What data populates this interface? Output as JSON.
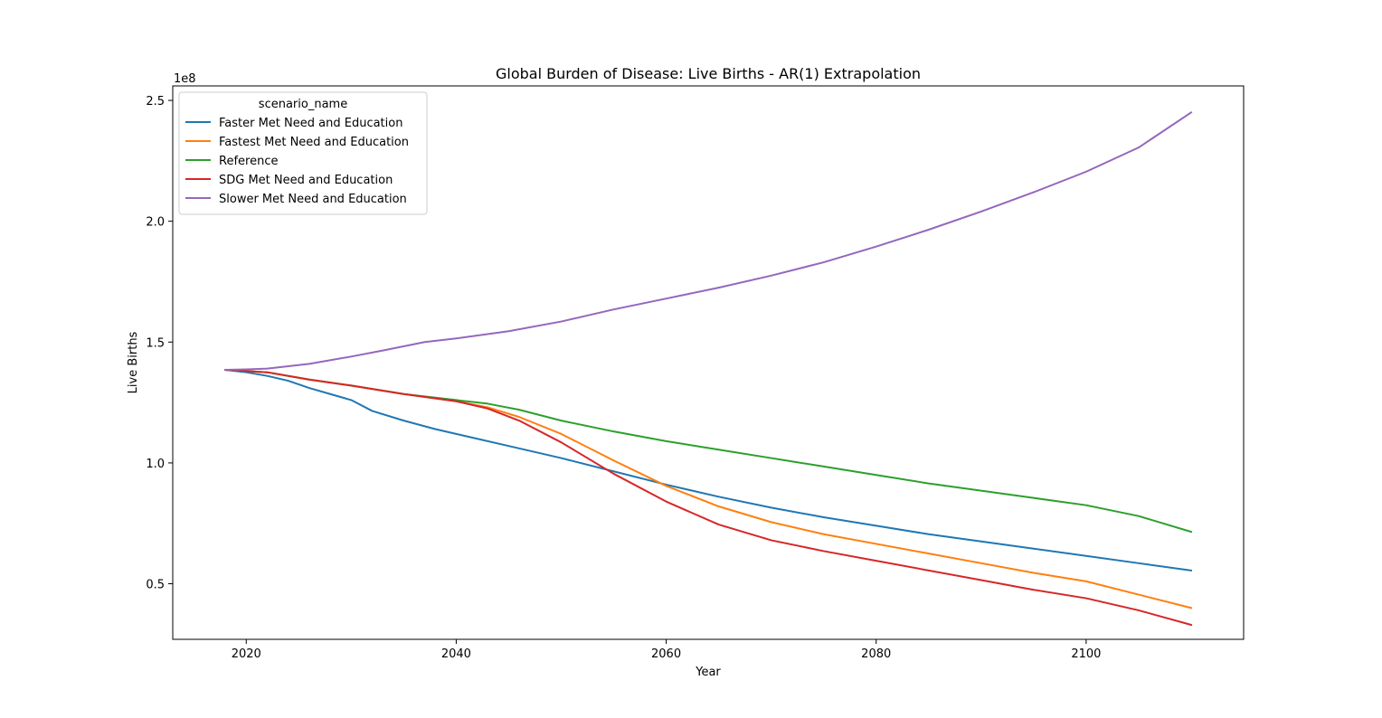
{
  "chart_data": {
    "type": "line",
    "title": "Global Burden of Disease: Live Births - AR(1) Extrapolation",
    "xlabel": "Year",
    "ylabel": "Live Births",
    "y_offset_label": "1e8",
    "xlim": [
      2013,
      2115
    ],
    "ylim": [
      0.27,
      2.56
    ],
    "x_ticks": [
      2020,
      2040,
      2060,
      2080,
      2100
    ],
    "x_tick_labels": [
      "2020",
      "2040",
      "2060",
      "2080",
      "2100"
    ],
    "y_ticks": [
      0.5,
      1.0,
      1.5,
      2.0,
      2.5
    ],
    "y_tick_labels": [
      "0.5",
      "1.0",
      "1.5",
      "2.0",
      "2.5"
    ],
    "grid": false,
    "legend": {
      "title": "scenario_name",
      "placement": "upper-left"
    },
    "series": [
      {
        "name": "Faster Met Need and Education",
        "color": "#1f77b4",
        "points": [
          [
            2018,
            1.385
          ],
          [
            2020,
            1.375
          ],
          [
            2022,
            1.36
          ],
          [
            2024,
            1.34
          ],
          [
            2026,
            1.31
          ],
          [
            2028,
            1.285
          ],
          [
            2030,
            1.26
          ],
          [
            2032,
            1.215
          ],
          [
            2035,
            1.175
          ],
          [
            2038,
            1.14
          ],
          [
            2040,
            1.12
          ],
          [
            2045,
            1.07
          ],
          [
            2050,
            1.02
          ],
          [
            2055,
            0.965
          ],
          [
            2060,
            0.91
          ],
          [
            2065,
            0.86
          ],
          [
            2070,
            0.815
          ],
          [
            2075,
            0.775
          ],
          [
            2080,
            0.74
          ],
          [
            2085,
            0.705
          ],
          [
            2090,
            0.675
          ],
          [
            2095,
            0.645
          ],
          [
            2100,
            0.615
          ],
          [
            2105,
            0.585
          ],
          [
            2110,
            0.555
          ]
        ]
      },
      {
        "name": "Fastest Met Need and Education",
        "color": "#ff7f0e",
        "points": [
          [
            2018,
            1.385
          ],
          [
            2022,
            1.375
          ],
          [
            2026,
            1.345
          ],
          [
            2030,
            1.32
          ],
          [
            2035,
            1.285
          ],
          [
            2040,
            1.255
          ],
          [
            2043,
            1.23
          ],
          [
            2046,
            1.19
          ],
          [
            2050,
            1.12
          ],
          [
            2055,
            1.01
          ],
          [
            2060,
            0.905
          ],
          [
            2065,
            0.82
          ],
          [
            2070,
            0.755
          ],
          [
            2075,
            0.705
          ],
          [
            2080,
            0.665
          ],
          [
            2085,
            0.625
          ],
          [
            2090,
            0.585
          ],
          [
            2095,
            0.545
          ],
          [
            2100,
            0.51
          ],
          [
            2105,
            0.455
          ],
          [
            2110,
            0.4
          ]
        ]
      },
      {
        "name": "Reference",
        "color": "#2ca02c",
        "points": [
          [
            2018,
            1.385
          ],
          [
            2022,
            1.375
          ],
          [
            2026,
            1.345
          ],
          [
            2030,
            1.32
          ],
          [
            2035,
            1.285
          ],
          [
            2040,
            1.26
          ],
          [
            2043,
            1.245
          ],
          [
            2046,
            1.22
          ],
          [
            2050,
            1.175
          ],
          [
            2055,
            1.13
          ],
          [
            2060,
            1.09
          ],
          [
            2065,
            1.055
          ],
          [
            2070,
            1.02
          ],
          [
            2075,
            0.985
          ],
          [
            2080,
            0.95
          ],
          [
            2085,
            0.915
          ],
          [
            2090,
            0.885
          ],
          [
            2095,
            0.855
          ],
          [
            2100,
            0.825
          ],
          [
            2105,
            0.78
          ],
          [
            2110,
            0.715
          ]
        ]
      },
      {
        "name": "SDG Met Need and Education",
        "color": "#d62728",
        "points": [
          [
            2018,
            1.385
          ],
          [
            2022,
            1.375
          ],
          [
            2026,
            1.345
          ],
          [
            2030,
            1.32
          ],
          [
            2035,
            1.285
          ],
          [
            2040,
            1.255
          ],
          [
            2043,
            1.225
          ],
          [
            2046,
            1.175
          ],
          [
            2050,
            1.085
          ],
          [
            2055,
            0.955
          ],
          [
            2060,
            0.84
          ],
          [
            2065,
            0.745
          ],
          [
            2070,
            0.68
          ],
          [
            2075,
            0.635
          ],
          [
            2080,
            0.595
          ],
          [
            2085,
            0.555
          ],
          [
            2090,
            0.515
          ],
          [
            2095,
            0.475
          ],
          [
            2100,
            0.44
          ],
          [
            2105,
            0.39
          ],
          [
            2110,
            0.33
          ]
        ]
      },
      {
        "name": "Slower Met Need and Education",
        "color": "#9467bd",
        "points": [
          [
            2018,
            1.385
          ],
          [
            2020,
            1.387
          ],
          [
            2022,
            1.39
          ],
          [
            2026,
            1.41
          ],
          [
            2030,
            1.44
          ],
          [
            2033,
            1.465
          ],
          [
            2037,
            1.5
          ],
          [
            2040,
            1.515
          ],
          [
            2045,
            1.545
          ],
          [
            2050,
            1.585
          ],
          [
            2055,
            1.635
          ],
          [
            2060,
            1.68
          ],
          [
            2065,
            1.725
          ],
          [
            2070,
            1.775
          ],
          [
            2075,
            1.83
          ],
          [
            2080,
            1.895
          ],
          [
            2085,
            1.965
          ],
          [
            2090,
            2.04
          ],
          [
            2095,
            2.12
          ],
          [
            2100,
            2.205
          ],
          [
            2105,
            2.305
          ],
          [
            2110,
            2.45
          ]
        ]
      }
    ]
  }
}
